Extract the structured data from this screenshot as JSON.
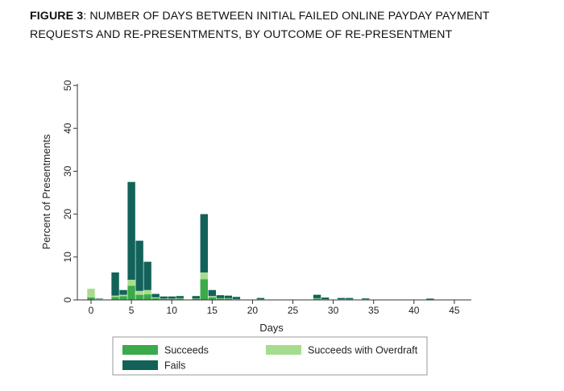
{
  "figure": {
    "label": "FIGURE 3",
    "title": ": NUMBER OF DAYS BETWEEN INITIAL FAILED ONLINE PAYDAY PAYMENT REQUESTS AND RE-PRESENTMENTS, BY OUTCOME OF RE-PRESENTMENT"
  },
  "chart_data": {
    "type": "bar",
    "stacked": true,
    "title": "",
    "xlabel": "Days",
    "ylabel": "Percent of Presentments",
    "xlim": [
      -1,
      47
    ],
    "ylim": [
      0,
      50
    ],
    "xticks": [
      0,
      5,
      10,
      15,
      20,
      25,
      30,
      35,
      40,
      45
    ],
    "yticks": [
      0,
      10,
      20,
      30,
      40,
      50
    ],
    "x": [
      0,
      1,
      3,
      4,
      5,
      6,
      7,
      8,
      9,
      10,
      11,
      13,
      14,
      15,
      16,
      17,
      18,
      21,
      28,
      29,
      31,
      32,
      34,
      42
    ],
    "series": [
      {
        "name": "Succeeds",
        "color": "#3aaa4a",
        "values": [
          0.6,
          0.1,
          0.7,
          0.9,
          3.3,
          1.2,
          1.3,
          0.4,
          0.2,
          0.2,
          0.3,
          0.2,
          4.8,
          0.6,
          0.3,
          0.3,
          0.1,
          0.1,
          0.3,
          0.1,
          0.1,
          0.1,
          0.1,
          0.05
        ]
      },
      {
        "name": "Succeeds with Overdraft",
        "color": "#a6dc8f",
        "values": [
          2.0,
          0.1,
          0.3,
          0.3,
          1.4,
          0.9,
          1.0,
          0.2,
          0.1,
          0.1,
          0.1,
          0.1,
          1.6,
          0.3,
          0.1,
          0.1,
          0.1,
          0.05,
          0.1,
          0.05,
          0.05,
          0.05,
          0.05,
          0.05
        ]
      },
      {
        "name": "Fails",
        "color": "#12625a",
        "values": [
          0.0,
          0.1,
          5.4,
          1.1,
          22.8,
          11.7,
          6.6,
          0.8,
          0.5,
          0.5,
          0.5,
          0.6,
          13.6,
          1.4,
          0.7,
          0.6,
          0.5,
          0.3,
          0.8,
          0.4,
          0.3,
          0.3,
          0.2,
          0.2
        ]
      }
    ],
    "legend": {
      "position": "bottom",
      "entries": [
        "Succeeds",
        "Succeeds with Overdraft",
        "Fails"
      ]
    },
    "grid": false
  }
}
